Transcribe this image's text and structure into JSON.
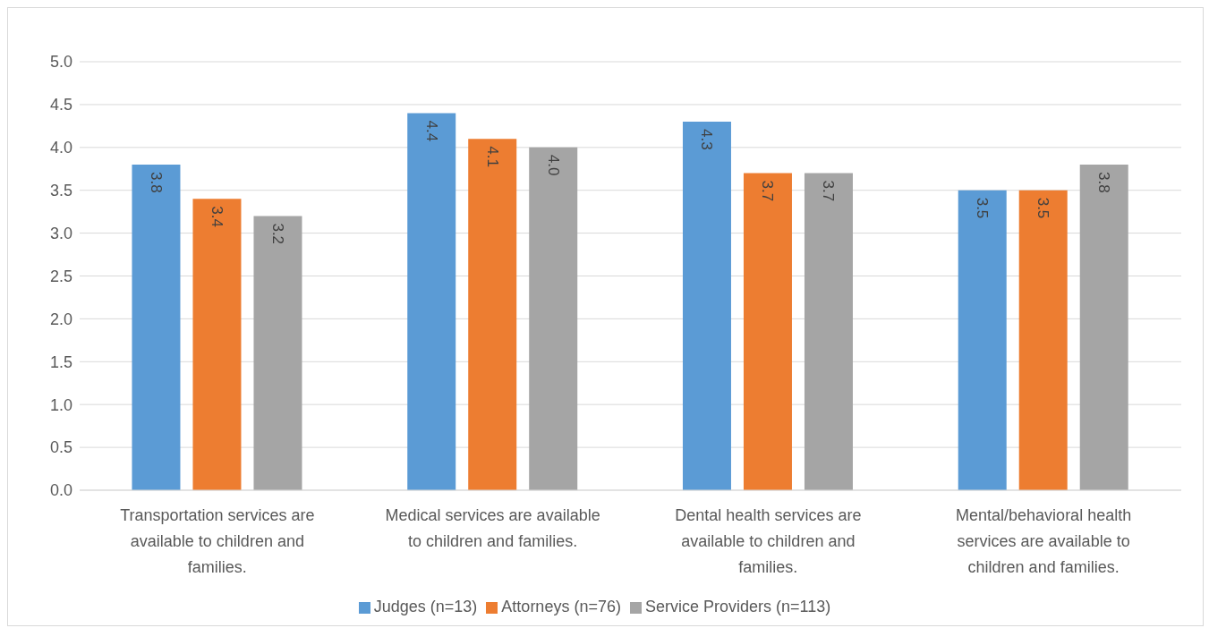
{
  "chart_data": {
    "type": "bar",
    "categories": [
      "Transportation services are available to children and families.",
      "Medical services are available to children and families.",
      "Dental health services are available to children and families.",
      "Mental/behavioral health services are available to children and families."
    ],
    "series": [
      {
        "name": "Judges (n=13)",
        "color": "#5b9bd5",
        "values": [
          3.8,
          4.4,
          4.3,
          3.5
        ],
        "value_labels": [
          "3.8",
          "4.4",
          "4.3",
          "3.5"
        ]
      },
      {
        "name": "Attorneys (n=76)",
        "color": "#ed7d31",
        "values": [
          3.4,
          4.1,
          3.7,
          3.5
        ],
        "value_labels": [
          "3.4",
          "4.1",
          "3.7",
          "3.5"
        ]
      },
      {
        "name": "Service Providers (n=113)",
        "color": "#a5a5a5",
        "values": [
          3.2,
          4.0,
          3.7,
          3.8
        ],
        "value_labels": [
          "3.2",
          "4.0",
          "3.7",
          "3.8"
        ]
      }
    ],
    "ylim": [
      0,
      5
    ],
    "yticks": [
      {
        "value": 0,
        "label": "0.0"
      },
      0.5,
      {
        "value": 1,
        "label": "1.0"
      },
      1.5,
      {
        "value": 2,
        "label": "2.0"
      },
      2.5,
      {
        "value": 3,
        "label": "3.0"
      },
      3.5,
      {
        "value": 4,
        "label": "4.0"
      },
      4.5,
      {
        "value": 5,
        "label": "5.0"
      }
    ],
    "grid": "y",
    "legend": "bottom"
  }
}
